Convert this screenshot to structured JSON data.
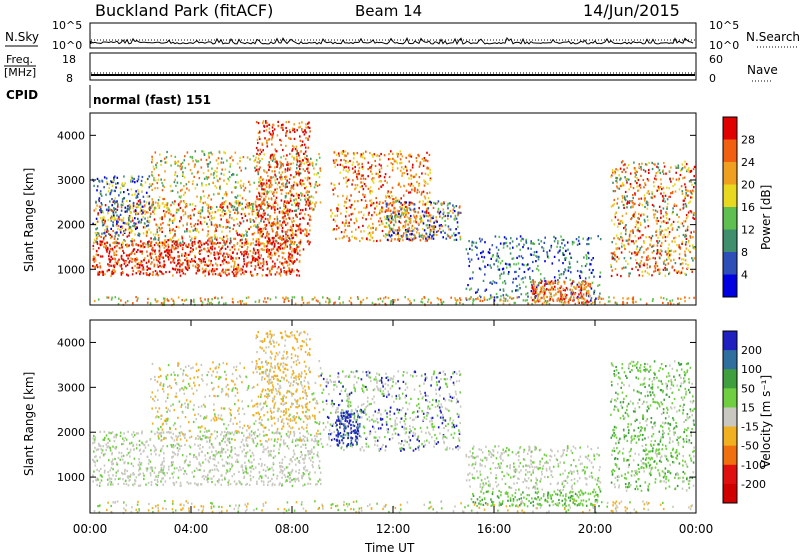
{
  "header": {
    "station": "Buckland Park (fitACF)",
    "beam": "Beam 14",
    "date": "14/Jun/2015"
  },
  "top_panels": {
    "nsky_label": "N.Sky",
    "nsearch_label": "N.Search",
    "left_ticks": [
      "10^5",
      "10^0"
    ],
    "right_ticks": [
      "10^5",
      "10^0"
    ],
    "freq_label_1": "Freq.",
    "freq_label_2": "[MHz]",
    "freq_ticks": [
      "18",
      "8"
    ],
    "nave_label": "Nave",
    "nave_ticks": [
      "60",
      "0"
    ],
    "cpid_label": "CPID",
    "cpid_text": "normal (fast) 151"
  },
  "chart_data": [
    {
      "type": "heatmap",
      "name": "power",
      "ylabel": "Slant Range [km]",
      "ylim": [
        200,
        4500
      ],
      "yticks": [
        "1000",
        "2000",
        "3000",
        "4000"
      ],
      "colorbar_label": "Power [dB]",
      "colorbar_ticks": [
        "4",
        "8",
        "12",
        "16",
        "20",
        "24",
        "28"
      ],
      "colors": [
        "#0000e0",
        "#2f4fb8",
        "#3f8f6f",
        "#5fbf50",
        "#e8d820",
        "#f0a020",
        "#f06010",
        "#e00000"
      ]
    },
    {
      "type": "heatmap",
      "name": "velocity",
      "ylabel": "Slant Range [km]",
      "ylim": [
        200,
        4500
      ],
      "yticks": [
        "1000",
        "2000",
        "3000",
        "4000"
      ],
      "colorbar_label": "Velocity [m s⁻¹]",
      "colorbar_ticks": [
        "200",
        "100",
        "50",
        "15",
        "-15",
        "-50",
        "-100",
        "-200"
      ],
      "colors": [
        "#2020c0",
        "#2f6f9f",
        "#3f9f3f",
        "#6fcf40",
        "#c8c8c0",
        "#f0b020",
        "#f07010",
        "#e01010",
        "#d00000"
      ]
    }
  ],
  "x_axis": {
    "label": "Time UT",
    "ticks": [
      "00:00",
      "04:00",
      "08:00",
      "12:00",
      "16:00",
      "20:00",
      "00:00"
    ]
  }
}
